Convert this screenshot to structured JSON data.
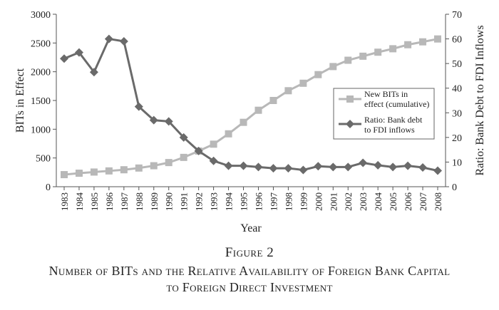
{
  "caption": {
    "figure_label": "Figure 2",
    "title_line1": "Number of BITs and the Relative Availability of Foreign Bank Capital",
    "title_line2": "to Foreign Direct Investment"
  },
  "chart_data": {
    "type": "line",
    "xlabel": "Year",
    "ylabel_left": "BITs in Effect",
    "ylabel_right": "Ratio: Bank Debt to FDI Inflows",
    "ylim_left": [
      0,
      3000
    ],
    "ylim_right": [
      0,
      70
    ],
    "yticks_left": [
      0,
      500,
      1000,
      1500,
      2000,
      2500,
      3000
    ],
    "yticks_right": [
      0,
      10,
      20,
      30,
      40,
      50,
      60,
      70
    ],
    "categories": [
      "1983",
      "1984",
      "1985",
      "1986",
      "1987",
      "1988",
      "1989",
      "1990",
      "1991",
      "1992",
      "1993",
      "1994",
      "1995",
      "1996",
      "1997",
      "1998",
      "1999",
      "2000",
      "2001",
      "2002",
      "2003",
      "2004",
      "2005",
      "2006",
      "2007",
      "2008"
    ],
    "grid": false,
    "legend_position": "right",
    "series": [
      {
        "name": "New BITs in effect (cumulative)",
        "legend_lines": [
          "New BITs in",
          "effect (cumulative)"
        ],
        "axis": "left",
        "marker": "square",
        "color": "#b8b8b8",
        "values": [
          210,
          235,
          255,
          275,
          295,
          325,
          365,
          420,
          510,
          620,
          740,
          920,
          1120,
          1330,
          1500,
          1670,
          1800,
          1950,
          2090,
          2200,
          2270,
          2340,
          2400,
          2470,
          2520,
          2570
        ]
      },
      {
        "name": "Ratio: Bank debt to FDI inflows",
        "legend_lines": [
          "Ratio: Bank debt",
          "to FDI inflows"
        ],
        "axis": "right",
        "marker": "diamond",
        "color": "#6a6a6a",
        "values": [
          52,
          54.5,
          46.5,
          60,
          59,
          32.5,
          27,
          26.5,
          20,
          14.5,
          10.5,
          8.5,
          8.5,
          8,
          7.5,
          7.5,
          6.8,
          8.3,
          8,
          8,
          9.7,
          8.7,
          8,
          8.5,
          7.8,
          6.5
        ]
      }
    ]
  }
}
